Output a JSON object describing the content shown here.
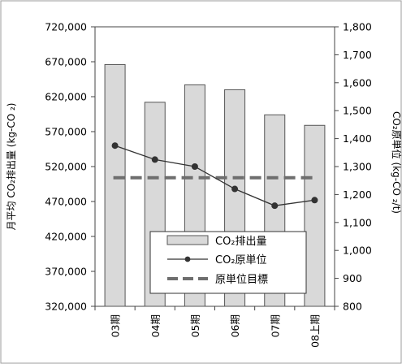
{
  "chart_data": {
    "type": "bar",
    "categories": [
      "03期",
      "04期",
      "05期",
      "06期",
      "07期",
      "08上期"
    ],
    "series": [
      {
        "name": "CO₂排出量",
        "type": "bar",
        "axis": "left",
        "values": [
          666000,
          612000,
          637000,
          630000,
          594000,
          579000
        ]
      },
      {
        "name": "CO₂原単位",
        "type": "line",
        "axis": "right",
        "values": [
          1375,
          1325,
          1300,
          1220,
          1160,
          1180
        ]
      },
      {
        "name": "原単位目標",
        "type": "line",
        "style": "dashed",
        "axis": "right",
        "values": [
          1260,
          1260,
          1260,
          1260,
          1260,
          1260
        ]
      }
    ],
    "ylabel_left": "月平均 CO₂排出量 (kg-CO ₂)",
    "ylabel_right": "CO₂原単位 (kg-CO ₂/t)",
    "ylim_left": [
      320000,
      720000
    ],
    "ylim_right": [
      800,
      1800
    ],
    "yticks_left": [
      "320,000",
      "370,000",
      "420,000",
      "470,000",
      "520,000",
      "570,000",
      "620,000",
      "670,000",
      "720,000"
    ],
    "yticks_right": [
      "800",
      "900",
      "1,000",
      "1,100",
      "1,200",
      "1,300",
      "1,400",
      "1,500",
      "1,600",
      "1,700",
      "1,800"
    ],
    "legend_position": "bottom-center",
    "grid": false,
    "colors": {
      "bar_fill": "#d9d9d9",
      "bar_stroke": "#555555",
      "line": "#333333",
      "target_line": "#6e6e6e"
    }
  }
}
